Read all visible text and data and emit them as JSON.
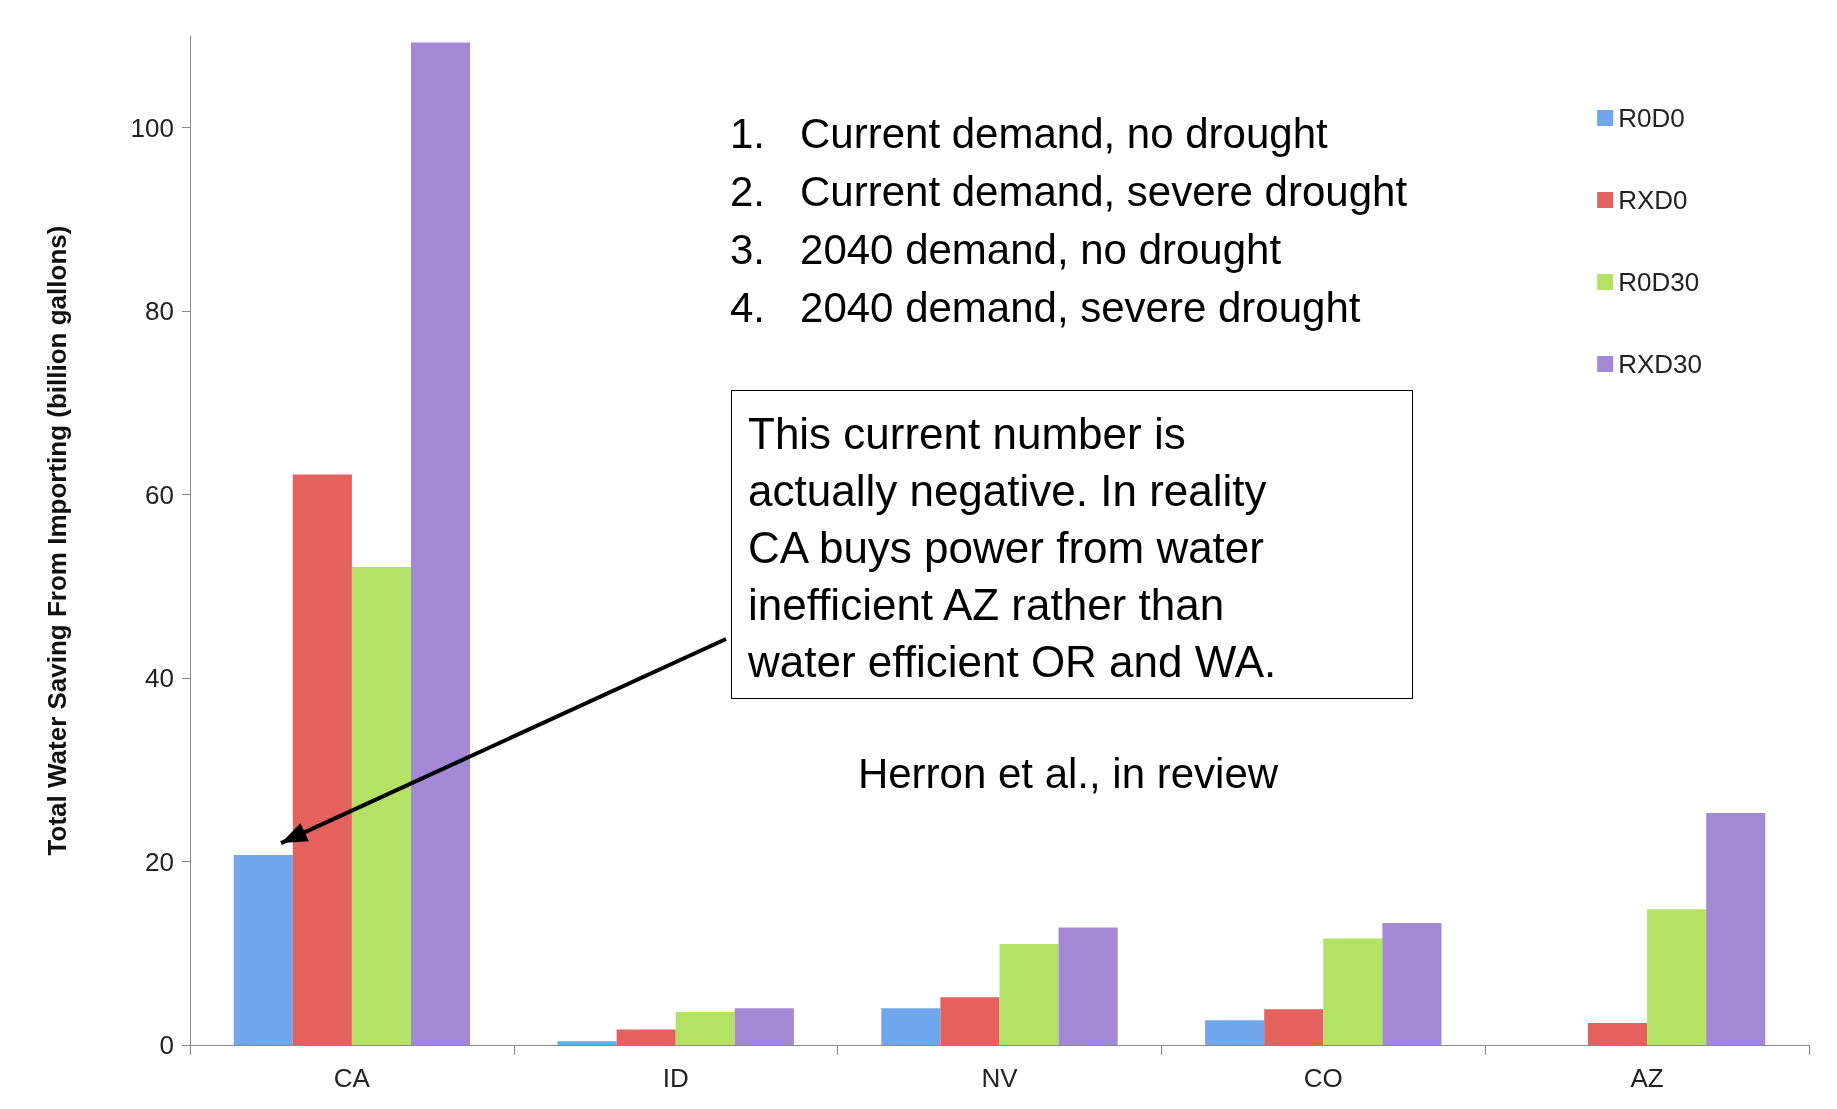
{
  "chart_data": {
    "type": "bar",
    "ylabel": "Total Water Saving From Importing (billion gallons)",
    "categories": [
      "CA",
      "ID",
      "NV",
      "CO",
      "AZ"
    ],
    "series": [
      {
        "name": "R0D0",
        "color": "#6fa6ec",
        "values": [
          20.7,
          0.4,
          4.0,
          2.7,
          null
        ]
      },
      {
        "name": "RXD0",
        "color": "#e5615e",
        "values": [
          62.2,
          1.7,
          5.2,
          3.9,
          2.4
        ]
      },
      {
        "name": "R0D30",
        "color": "#b4e264",
        "values": [
          52.1,
          3.6,
          11.0,
          11.6,
          14.8
        ]
      },
      {
        "name": "RXD30",
        "color": "#a388d6",
        "values": [
          109.3,
          4.0,
          12.8,
          13.3,
          25.3
        ]
      }
    ],
    "ylim": [
      0,
      110
    ],
    "yticks": [
      0,
      20,
      40,
      60,
      80,
      100
    ],
    "grid": false,
    "legend": "top right",
    "annotations": [
      "1.   Current demand, no drought",
      "2.   Current demand, severe drought",
      "3.   2040 demand, no drought",
      "4.   2040 demand, severe drought",
      "This current number is actually negative. In reality CA buys power from water inefficient AZ rather than water efficient OR and WA.",
      "Herron et al., in review"
    ]
  }
}
